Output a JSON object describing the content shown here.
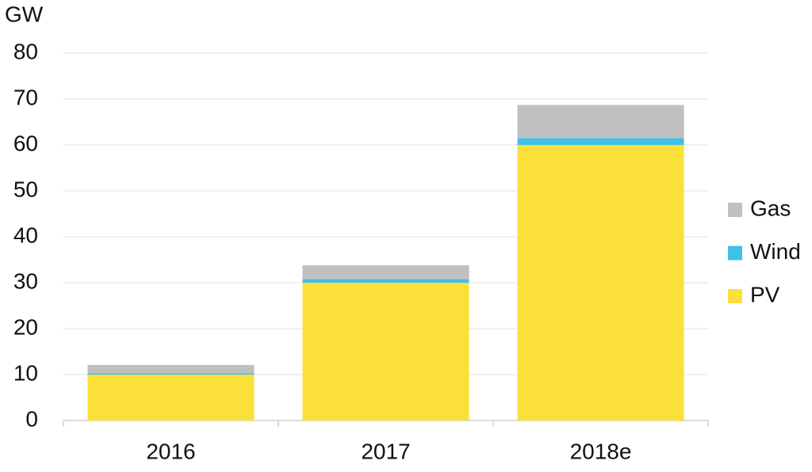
{
  "chart_data": {
    "type": "stacked_bar",
    "y_label": "GW",
    "categories": [
      "2016",
      "2017",
      "2018e"
    ],
    "series": [
      {
        "name": "PV",
        "color": "#fbe03a",
        "values": [
          10,
          30,
          60
        ]
      },
      {
        "name": "Wind",
        "color": "#3ec1e6",
        "values": [
          0.3,
          0.8,
          1.5
        ]
      },
      {
        "name": "Gas",
        "color": "#c0c0c0",
        "values": [
          1.8,
          3,
          7.2
        ]
      }
    ],
    "ylim": [
      0,
      80
    ],
    "yticks": [
      0,
      10,
      20,
      30,
      40,
      50,
      60,
      70,
      80
    ],
    "grid": true,
    "legend": "right"
  }
}
